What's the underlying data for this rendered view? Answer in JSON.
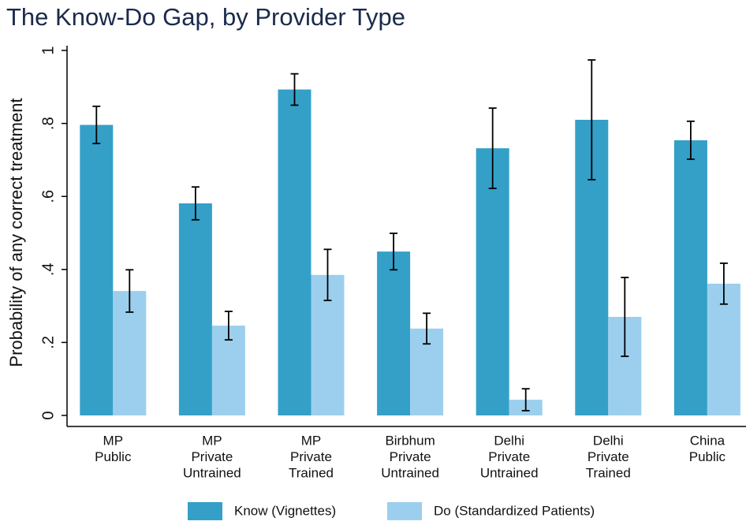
{
  "chart_data": {
    "type": "bar",
    "title": "The Know-Do Gap, by Provider Type",
    "y_label": "Probability of any correct treatment",
    "categories": [
      [
        "MP",
        "Public"
      ],
      [
        "MP",
        "Private",
        "Untrained"
      ],
      [
        "MP",
        "Private",
        "Trained"
      ],
      [
        "Birbhum",
        "Private",
        "Untrained"
      ],
      [
        "Delhi",
        "Private",
        "Untrained"
      ],
      [
        "Delhi",
        "Private",
        "Trained"
      ],
      [
        "China",
        "Public"
      ]
    ],
    "series": [
      {
        "name": "Know (Vignettes)",
        "color": "#34a0c8",
        "values": [
          0.796,
          0.581,
          0.893,
          0.449,
          0.732,
          0.81,
          0.754
        ],
        "errors": [
          0.051,
          0.045,
          0.043,
          0.05,
          0.11,
          0.164,
          0.052
        ]
      },
      {
        "name": "Do (Standardized Patients)",
        "color": "#9ccfee",
        "values": [
          0.341,
          0.246,
          0.385,
          0.238,
          0.043,
          0.27,
          0.361
        ],
        "errors": [
          0.058,
          0.039,
          0.07,
          0.042,
          0.03,
          0.108,
          0.056
        ]
      }
    ],
    "ylim": [
      0,
      1
    ],
    "yticks": [
      0,
      {
        "value": 0.2,
        "label": ".2"
      },
      {
        "value": 0.4,
        "label": ".4"
      },
      {
        "value": 0.6,
        "label": ".6"
      },
      {
        "value": 0.8,
        "label": ".8"
      },
      1
    ],
    "legend": "bottom"
  }
}
